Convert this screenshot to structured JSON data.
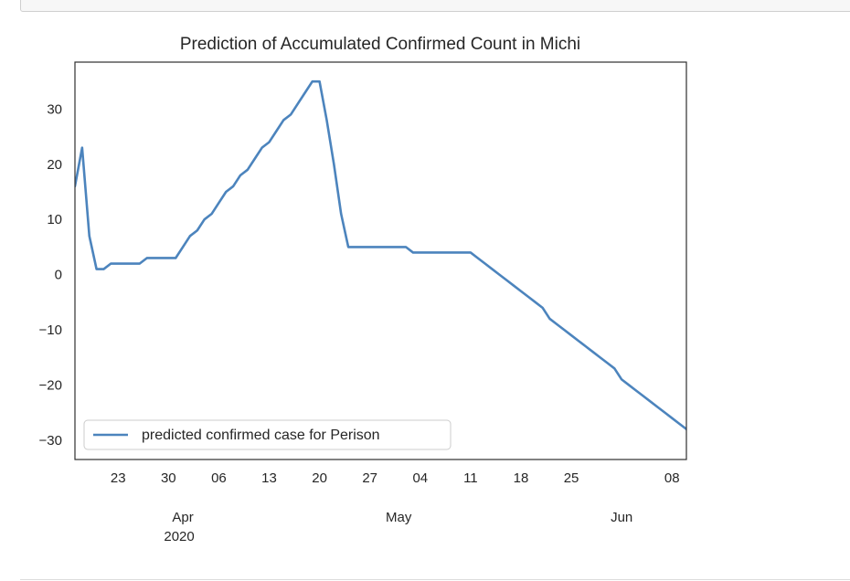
{
  "chart_data": {
    "type": "line",
    "title": "Prediction of Accumulated Confirmed Count in Michi",
    "xlabel": "",
    "ylabel": "",
    "xlim": [
      "2020-03-17",
      "2020-06-10"
    ],
    "ylim": [
      -33.5,
      38.5
    ],
    "yticks": [
      30,
      20,
      10,
      0,
      -10,
      -20,
      -30
    ],
    "ytick_labels": [
      "30",
      "20",
      "10",
      "0",
      "−10",
      "−20",
      "−30"
    ],
    "xticks_minor": [
      {
        "date": "2020-03-23",
        "label": "23"
      },
      {
        "date": "2020-03-30",
        "label": "30"
      },
      {
        "date": "2020-04-06",
        "label": "06"
      },
      {
        "date": "2020-04-13",
        "label": "13"
      },
      {
        "date": "2020-04-20",
        "label": "20"
      },
      {
        "date": "2020-04-27",
        "label": "27"
      },
      {
        "date": "2020-05-04",
        "label": "04"
      },
      {
        "date": "2020-05-11",
        "label": "11"
      },
      {
        "date": "2020-05-18",
        "label": "18"
      },
      {
        "date": "2020-05-25",
        "label": "25"
      },
      {
        "date": "2020-06-08",
        "label": "08"
      }
    ],
    "xticks_major": [
      {
        "date": "2020-04-01",
        "label": "Apr",
        "sublabel": "2020"
      },
      {
        "date": "2020-05-01",
        "label": "May",
        "sublabel": ""
      },
      {
        "date": "2020-06-01",
        "label": "Jun",
        "sublabel": ""
      }
    ],
    "grid": false,
    "legend_position": "lower-left",
    "series": [
      {
        "name": "predicted confirmed case for Perison",
        "color": "#4c84bd",
        "points": [
          [
            "2020-03-17",
            16
          ],
          [
            "2020-03-18",
            23
          ],
          [
            "2020-03-19",
            7
          ],
          [
            "2020-03-20",
            1
          ],
          [
            "2020-03-21",
            1
          ],
          [
            "2020-03-22",
            2
          ],
          [
            "2020-03-23",
            2
          ],
          [
            "2020-03-24",
            2
          ],
          [
            "2020-03-25",
            2
          ],
          [
            "2020-03-26",
            2
          ],
          [
            "2020-03-27",
            3
          ],
          [
            "2020-03-28",
            3
          ],
          [
            "2020-03-29",
            3
          ],
          [
            "2020-03-30",
            3
          ],
          [
            "2020-03-31",
            3
          ],
          [
            "2020-04-01",
            5
          ],
          [
            "2020-04-02",
            7
          ],
          [
            "2020-04-03",
            8
          ],
          [
            "2020-04-04",
            10
          ],
          [
            "2020-04-05",
            11
          ],
          [
            "2020-04-06",
            13
          ],
          [
            "2020-04-07",
            15
          ],
          [
            "2020-04-08",
            16
          ],
          [
            "2020-04-09",
            18
          ],
          [
            "2020-04-10",
            19
          ],
          [
            "2020-04-11",
            21
          ],
          [
            "2020-04-12",
            23
          ],
          [
            "2020-04-13",
            24
          ],
          [
            "2020-04-14",
            26
          ],
          [
            "2020-04-15",
            28
          ],
          [
            "2020-04-16",
            29
          ],
          [
            "2020-04-17",
            31
          ],
          [
            "2020-04-18",
            33
          ],
          [
            "2020-04-19",
            35
          ],
          [
            "2020-04-20",
            35
          ],
          [
            "2020-04-21",
            28
          ],
          [
            "2020-04-22",
            20
          ],
          [
            "2020-04-23",
            11
          ],
          [
            "2020-04-24",
            5
          ],
          [
            "2020-04-25",
            5
          ],
          [
            "2020-04-26",
            5
          ],
          [
            "2020-04-27",
            5
          ],
          [
            "2020-04-28",
            5
          ],
          [
            "2020-04-29",
            5
          ],
          [
            "2020-04-30",
            5
          ],
          [
            "2020-05-01",
            5
          ],
          [
            "2020-05-02",
            5
          ],
          [
            "2020-05-03",
            4
          ],
          [
            "2020-05-04",
            4
          ],
          [
            "2020-05-05",
            4
          ],
          [
            "2020-05-06",
            4
          ],
          [
            "2020-05-07",
            4
          ],
          [
            "2020-05-08",
            4
          ],
          [
            "2020-05-09",
            4
          ],
          [
            "2020-05-10",
            4
          ],
          [
            "2020-05-11",
            4
          ],
          [
            "2020-05-12",
            3
          ],
          [
            "2020-05-13",
            2
          ],
          [
            "2020-05-14",
            1
          ],
          [
            "2020-05-15",
            0
          ],
          [
            "2020-05-16",
            -1
          ],
          [
            "2020-05-17",
            -2
          ],
          [
            "2020-05-18",
            -3
          ],
          [
            "2020-05-19",
            -4
          ],
          [
            "2020-05-20",
            -5
          ],
          [
            "2020-05-21",
            -6
          ],
          [
            "2020-05-22",
            -8
          ],
          [
            "2020-05-23",
            -9
          ],
          [
            "2020-05-24",
            -10
          ],
          [
            "2020-05-25",
            -11
          ],
          [
            "2020-05-26",
            -12
          ],
          [
            "2020-05-27",
            -13
          ],
          [
            "2020-05-28",
            -14
          ],
          [
            "2020-05-29",
            -15
          ],
          [
            "2020-05-30",
            -16
          ],
          [
            "2020-05-31",
            -17
          ],
          [
            "2020-06-01",
            -19
          ],
          [
            "2020-06-02",
            -20
          ],
          [
            "2020-06-03",
            -21
          ],
          [
            "2020-06-04",
            -22
          ],
          [
            "2020-06-05",
            -23
          ],
          [
            "2020-06-06",
            -24
          ],
          [
            "2020-06-07",
            -25
          ],
          [
            "2020-06-08",
            -26
          ],
          [
            "2020-06-09",
            -27
          ],
          [
            "2020-06-10",
            -28
          ],
          [
            "2020-06-11",
            -30
          ]
        ]
      }
    ]
  }
}
